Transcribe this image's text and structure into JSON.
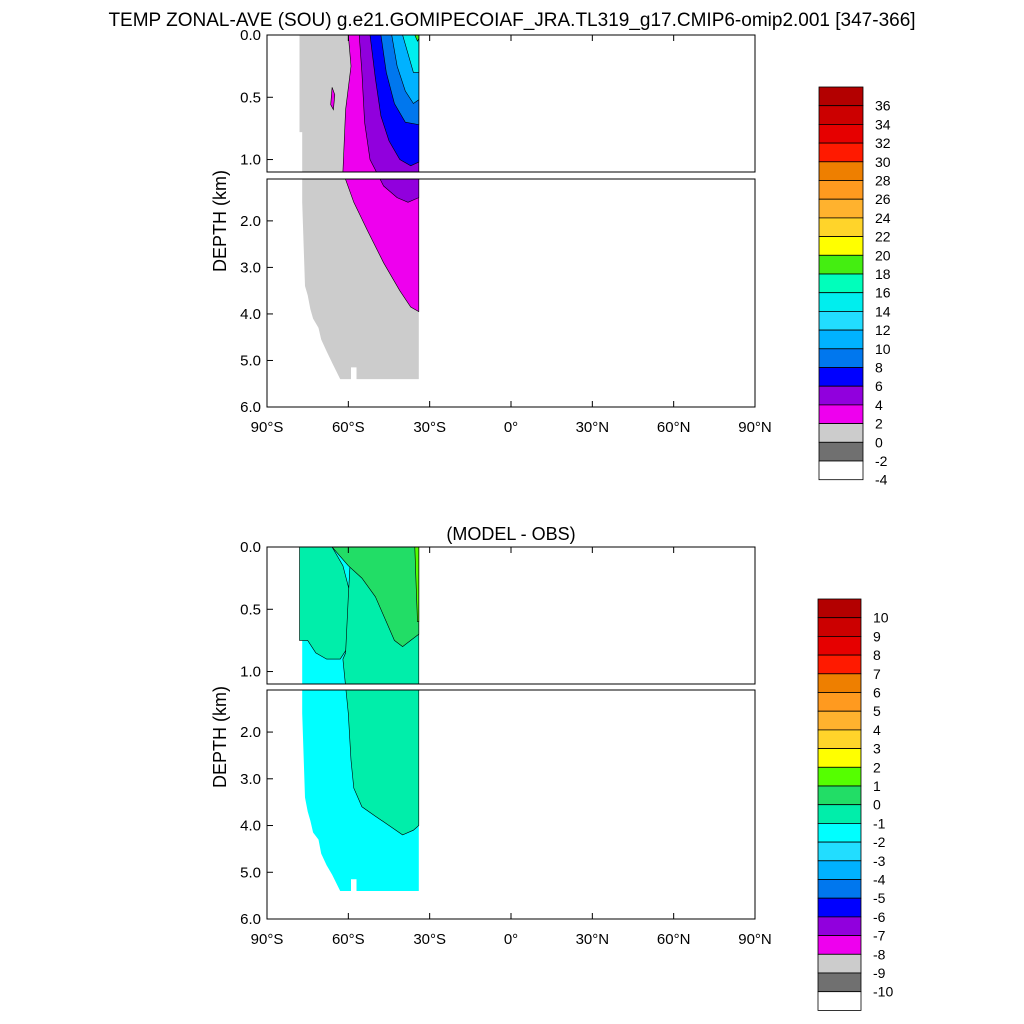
{
  "page": {
    "title": "TEMP ZONAL-AVE (SOU) g.e21.GOMIPECOIAF_JRA.TL319_g17.CMIP6-omip2.001 [347-366]"
  },
  "chart_data": [
    {
      "type": "heatmap",
      "title": "",
      "ylabel": "DEPTH (km)",
      "xlabel": "",
      "x_ticks": [
        "90°S",
        "60°S",
        "30°S",
        "0°",
        "30°N",
        "60°N",
        "90°N"
      ],
      "upper_y_ticks": [
        "0.0",
        "0.5",
        "1.0"
      ],
      "lower_y_ticks": [
        "2.0",
        "3.0",
        "4.0",
        "5.0",
        "6.0"
      ],
      "xlim": [
        -90,
        90
      ],
      "ylim_km": [
        6.0,
        0.0
      ],
      "split_depth_km": 1.1,
      "data_extent_lat": [
        -78,
        -34
      ],
      "data_extent_depth_km": [
        0.0,
        5.4
      ],
      "colorbar": {
        "labels": [
          "36",
          "34",
          "32",
          "30",
          "28",
          "26",
          "24",
          "22",
          "20",
          "18",
          "16",
          "14",
          "12",
          "10",
          "8",
          "6",
          "4",
          "2",
          "0",
          "-2",
          "-4"
        ],
        "colors": [
          "#b30000",
          "#cc0000",
          "#e60000",
          "#ff1a00",
          "#ee7f00",
          "#ff9a1f",
          "#ffb22e",
          "#ffd42a",
          "#ffff00",
          "#44ee11",
          "#00ffbb",
          "#00eeee",
          "#22ddff",
          "#00b2ff",
          "#0077ee",
          "#0000ff",
          "#9100dd",
          "#ee00ee",
          "#cccccc",
          "#707070",
          "#ffffff"
        ]
      },
      "regions": [
        {
          "name": "-2 to 0",
          "value_range": [
            -2,
            0
          ],
          "color": "#cccccc"
        },
        {
          "name": "0 to 2",
          "value_range": [
            0,
            2
          ],
          "color": "#ee00ee"
        },
        {
          "name": "2 to 4",
          "value_range": [
            2,
            4
          ],
          "color": "#9100dd"
        },
        {
          "name": "4 to 6",
          "value_range": [
            4,
            6
          ],
          "color": "#0000ff"
        },
        {
          "name": "6 to 8",
          "value_range": [
            6,
            8
          ],
          "color": "#0077ee"
        },
        {
          "name": "8 to 10",
          "value_range": [
            8,
            10
          ],
          "color": "#00b2ff"
        },
        {
          "name": "10 to 14",
          "value_range": [
            10,
            14
          ],
          "color": "#00eeee"
        },
        {
          "name": "16 to 18",
          "value_range": [
            16,
            18
          ],
          "color": "#44ee11"
        }
      ]
    },
    {
      "type": "heatmap",
      "title": "(MODEL - OBS)",
      "ylabel": "DEPTH (km)",
      "xlabel": "",
      "x_ticks": [
        "90°S",
        "60°S",
        "30°S",
        "0°",
        "30°N",
        "60°N",
        "90°N"
      ],
      "upper_y_ticks": [
        "0.0",
        "0.5",
        "1.0"
      ],
      "lower_y_ticks": [
        "2.0",
        "3.0",
        "4.0",
        "5.0",
        "6.0"
      ],
      "xlim": [
        -90,
        90
      ],
      "ylim_km": [
        6.0,
        0.0
      ],
      "split_depth_km": 1.1,
      "data_extent_lat": [
        -78,
        -34
      ],
      "data_extent_depth_km": [
        0.0,
        5.4
      ],
      "colorbar": {
        "labels": [
          "10",
          "9",
          "8",
          "7",
          "6",
          "5",
          "4",
          "3",
          "2",
          "1",
          "0",
          "-1",
          "-2",
          "-3",
          "-4",
          "-5",
          "-6",
          "-7",
          "-8",
          "-9",
          "-10"
        ],
        "colors": [
          "#b30000",
          "#cc0000",
          "#e60000",
          "#ff1a00",
          "#ee7f00",
          "#ff9a1f",
          "#ffb22e",
          "#ffd42a",
          "#ffff00",
          "#55ff00",
          "#22dd66",
          "#00eeaa",
          "#00ffff",
          "#22ddff",
          "#00b2ff",
          "#0077ee",
          "#0000ff",
          "#9100dd",
          "#ee00ee",
          "#cccccc",
          "#707070",
          "#ffffff"
        ]
      },
      "regions": [
        {
          "name": "-2 to -1",
          "value_range": [
            -2,
            -1
          ],
          "color": "#00ffff"
        },
        {
          "name": "-1 to 0",
          "value_range": [
            -1,
            0
          ],
          "color": "#00eeaa"
        },
        {
          "name": "0 to 1",
          "value_range": [
            0,
            1
          ],
          "color": "#22dd66"
        },
        {
          "name": "1 to 2",
          "value_range": [
            1,
            2
          ],
          "color": "#55ff00"
        }
      ]
    }
  ]
}
